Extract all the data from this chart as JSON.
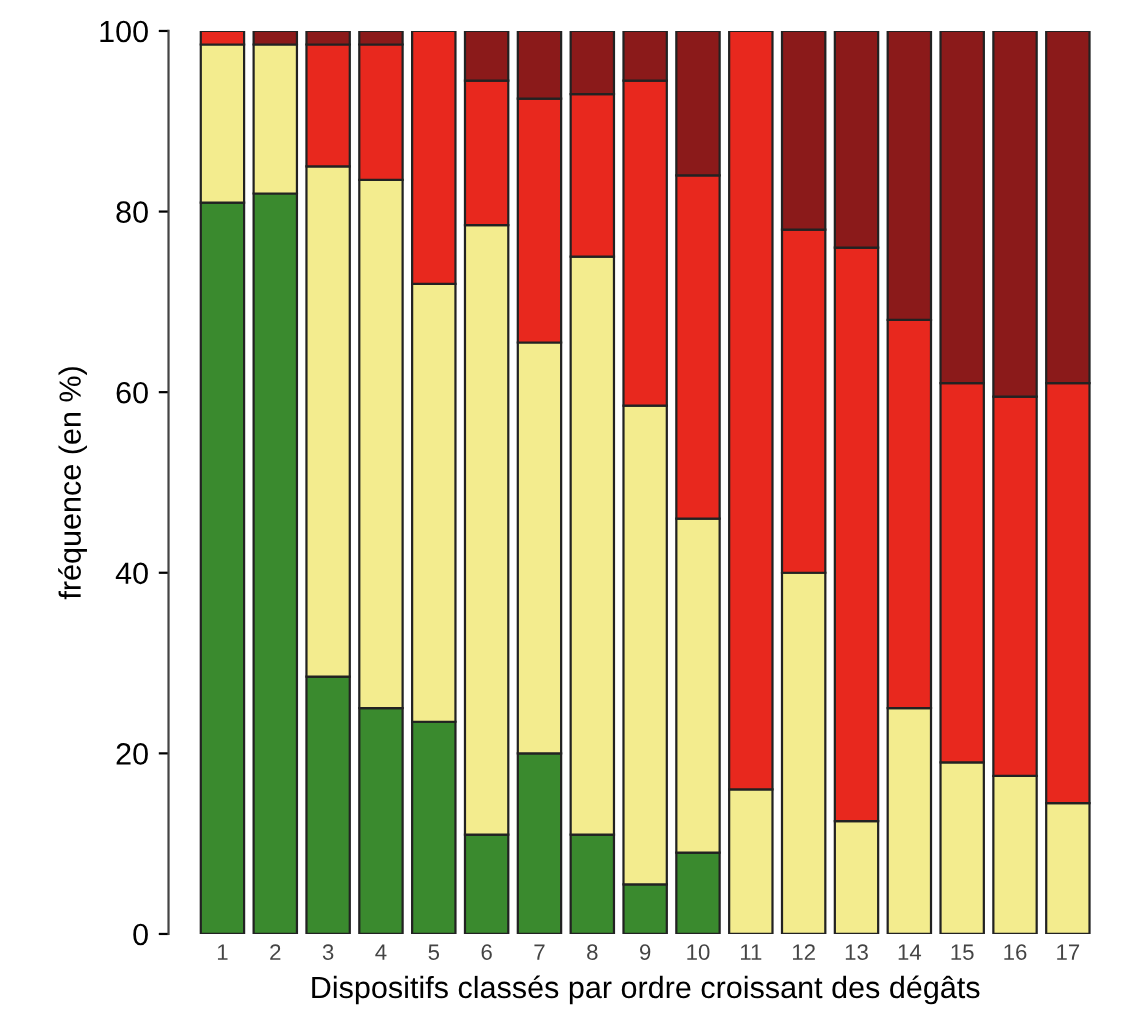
{
  "chart_data": {
    "type": "bar",
    "stacked": true,
    "xlabel": "Dispositifs classés par ordre croissant des dégâts",
    "ylabel": "fréquence (en %)",
    "categories": [
      "1",
      "2",
      "3",
      "4",
      "5",
      "6",
      "7",
      "8",
      "9",
      "10",
      "11",
      "12",
      "13",
      "14",
      "15",
      "16",
      "17"
    ],
    "series": [
      {
        "color": "#3a8a2e",
        "values": [
          81,
          82,
          28.5,
          25,
          23.5,
          11,
          20,
          11,
          5.5,
          9,
          0,
          0,
          0,
          0,
          0,
          0,
          0
        ]
      },
      {
        "color": "#f3ec8e",
        "values": [
          17.5,
          16.5,
          56.5,
          58.5,
          48.5,
          67.5,
          45.5,
          64,
          53,
          37,
          16,
          40,
          12.5,
          25,
          19,
          17.5,
          14.5
        ]
      },
      {
        "color": "#e8281e",
        "values": [
          1.5,
          0,
          13.5,
          15,
          28,
          16,
          27,
          18,
          36,
          38,
          84,
          38,
          63.5,
          43,
          42,
          42,
          46.5
        ]
      },
      {
        "color": "#8b1a1a",
        "values": [
          0,
          1.5,
          1.5,
          1.5,
          0,
          5.5,
          7.5,
          7,
          5.5,
          16,
          0,
          22,
          24,
          32,
          39,
          40.5,
          39
        ]
      }
    ],
    "ylim": [
      0,
      100
    ],
    "yticks": [
      0,
      20,
      40,
      60,
      80,
      100
    ],
    "grid": false,
    "legend": false
  }
}
